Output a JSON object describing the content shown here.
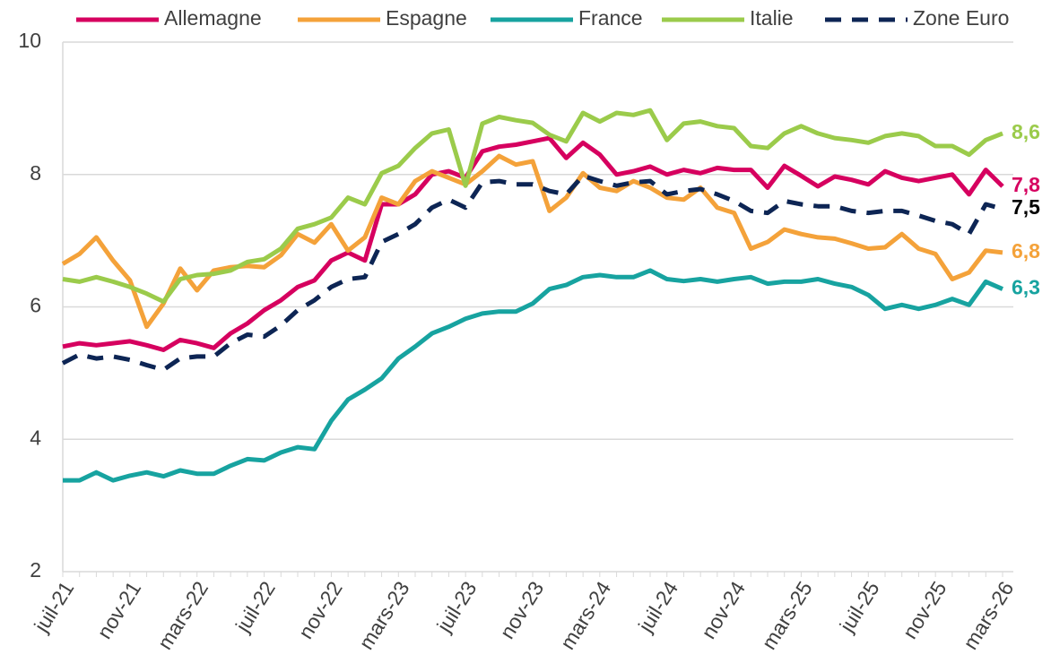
{
  "chart_data": {
    "type": "line",
    "categories": [
      "juil-21",
      null,
      null,
      null,
      "nov-21",
      null,
      null,
      null,
      "mars-22",
      null,
      null,
      null,
      "juil-22",
      null,
      null,
      null,
      "nov-22",
      null,
      null,
      null,
      "mars-23",
      null,
      null,
      null,
      "juil-23",
      null,
      null,
      null,
      "nov-23",
      null,
      null,
      null,
      "mars-24",
      null,
      null,
      null,
      "juil-24",
      null,
      null,
      null,
      "nov-24",
      null,
      null,
      null,
      "mars-25",
      null,
      null,
      null,
      "juil-25",
      null,
      null,
      null,
      "nov-25",
      null,
      null,
      null,
      "mars-26"
    ],
    "ylim": [
      2,
      10
    ],
    "yticks": [
      2,
      4,
      6,
      8,
      10
    ],
    "grid": true,
    "series": [
      {
        "name": "Allemagne",
        "color": "#d6005f",
        "end_label": "7,8",
        "values": [
          5.4,
          5.45,
          5.42,
          5.45,
          5.48,
          5.42,
          5.35,
          5.5,
          5.45,
          5.38,
          5.6,
          5.75,
          5.95,
          6.1,
          6.3,
          6.4,
          6.7,
          6.82,
          6.7,
          7.55,
          7.55,
          7.7,
          8.0,
          8.05,
          7.95,
          8.35,
          8.42,
          8.45,
          8.5,
          8.55,
          8.25,
          8.48,
          8.3,
          8.0,
          8.05,
          8.12,
          8.0,
          8.07,
          8.02,
          8.1,
          8.07,
          8.07,
          7.8,
          8.13,
          7.98,
          7.82,
          7.97,
          7.92,
          7.85,
          8.05,
          7.95,
          7.9,
          7.95,
          8.0,
          7.7,
          8.07,
          7.82
        ]
      },
      {
        "name": "Espagne",
        "color": "#f4a23a",
        "end_label": "6,8",
        "values": [
          6.65,
          6.8,
          7.05,
          6.7,
          6.4,
          5.7,
          6.05,
          6.58,
          6.25,
          6.55,
          6.6,
          6.62,
          6.6,
          6.78,
          7.1,
          6.97,
          7.25,
          6.85,
          7.05,
          7.65,
          7.55,
          7.9,
          8.05,
          7.95,
          7.85,
          8.05,
          8.28,
          8.15,
          8.2,
          7.45,
          7.65,
          8.02,
          7.8,
          7.75,
          7.9,
          7.8,
          7.65,
          7.62,
          7.8,
          7.5,
          7.42,
          6.88,
          6.98,
          7.17,
          7.1,
          7.05,
          7.03,
          6.96,
          6.88,
          6.9,
          7.1,
          6.88,
          6.8,
          6.42,
          6.52,
          6.85,
          6.82
        ]
      },
      {
        "name": "France",
        "color": "#17a3a0",
        "end_label": "6,3",
        "values": [
          3.38,
          3.38,
          3.5,
          3.38,
          3.45,
          3.5,
          3.44,
          3.53,
          3.48,
          3.48,
          3.6,
          3.7,
          3.68,
          3.8,
          3.88,
          3.85,
          4.28,
          4.6,
          4.75,
          4.92,
          5.22,
          5.4,
          5.6,
          5.7,
          5.82,
          5.9,
          5.93,
          5.93,
          6.05,
          6.27,
          6.33,
          6.45,
          6.48,
          6.45,
          6.45,
          6.55,
          6.42,
          6.39,
          6.42,
          6.38,
          6.42,
          6.45,
          6.35,
          6.38,
          6.38,
          6.42,
          6.35,
          6.3,
          6.18,
          5.97,
          6.03,
          5.97,
          6.03,
          6.12,
          6.03,
          6.38,
          6.27
        ]
      },
      {
        "name": "Italie",
        "color": "#9bcb4b",
        "end_label": "8,6",
        "values": [
          6.42,
          6.38,
          6.45,
          6.38,
          6.3,
          6.2,
          6.08,
          6.42,
          6.48,
          6.5,
          6.55,
          6.68,
          6.72,
          6.88,
          7.18,
          7.25,
          7.35,
          7.65,
          7.55,
          8.02,
          8.13,
          8.4,
          8.62,
          8.68,
          7.83,
          8.77,
          8.87,
          8.82,
          8.78,
          8.6,
          8.5,
          8.93,
          8.8,
          8.93,
          8.9,
          8.97,
          8.52,
          8.77,
          8.8,
          8.73,
          8.7,
          8.43,
          8.4,
          8.62,
          8.73,
          8.62,
          8.55,
          8.52,
          8.48,
          8.58,
          8.62,
          8.58,
          8.43,
          8.43,
          8.3,
          8.52,
          8.62
        ]
      },
      {
        "name": "Zone Euro",
        "color": "#0d2554",
        "dashed": true,
        "end_label": "7,5",
        "end_label_color": "#000000",
        "values": [
          5.15,
          5.28,
          5.22,
          5.25,
          5.2,
          5.12,
          5.05,
          5.22,
          5.25,
          5.25,
          5.45,
          5.58,
          5.55,
          5.72,
          5.95,
          6.1,
          6.3,
          6.42,
          6.45,
          6.98,
          7.1,
          7.25,
          7.5,
          7.62,
          7.5,
          7.88,
          7.9,
          7.85,
          7.85,
          7.75,
          7.7,
          7.98,
          7.9,
          7.83,
          7.88,
          7.9,
          7.7,
          7.75,
          7.78,
          7.7,
          7.6,
          7.45,
          7.42,
          7.6,
          7.55,
          7.52,
          7.52,
          7.45,
          7.42,
          7.45,
          7.45,
          7.38,
          7.3,
          7.25,
          7.1,
          7.55,
          7.48
        ]
      }
    ]
  }
}
